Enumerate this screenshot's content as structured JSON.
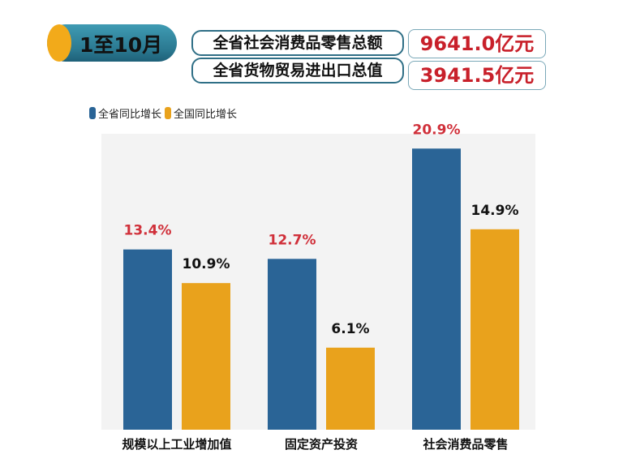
{
  "header": {
    "period": "1至10月",
    "stats": [
      {
        "label": "全省社会消费品零售总额",
        "value": "9641.0亿元"
      },
      {
        "label": "全省货物贸易进出口总值",
        "value": "3941.5亿元"
      }
    ]
  },
  "colors": {
    "province": "#2a6496",
    "national": "#e9a21c",
    "highlight": "#d0303a",
    "cylinder_cap": "#f2aa1a",
    "cylinder": "#2a7890"
  },
  "chart_data": {
    "type": "bar",
    "categories": [
      "规模以上工业增加值",
      "固定资产投资",
      "社会消费品零售"
    ],
    "series": [
      {
        "name": "全省同比增长",
        "values": [
          13.4,
          12.7,
          20.9
        ],
        "labels": [
          "13.4%",
          "12.7%",
          "20.9%"
        ]
      },
      {
        "name": "全国同比增长",
        "values": [
          10.9,
          6.1,
          14.9
        ],
        "labels": [
          "10.9%",
          "6.1%",
          "14.9%"
        ]
      }
    ],
    "ylim": [
      0,
      22
    ],
    "grid": false,
    "legend": "top-left"
  }
}
